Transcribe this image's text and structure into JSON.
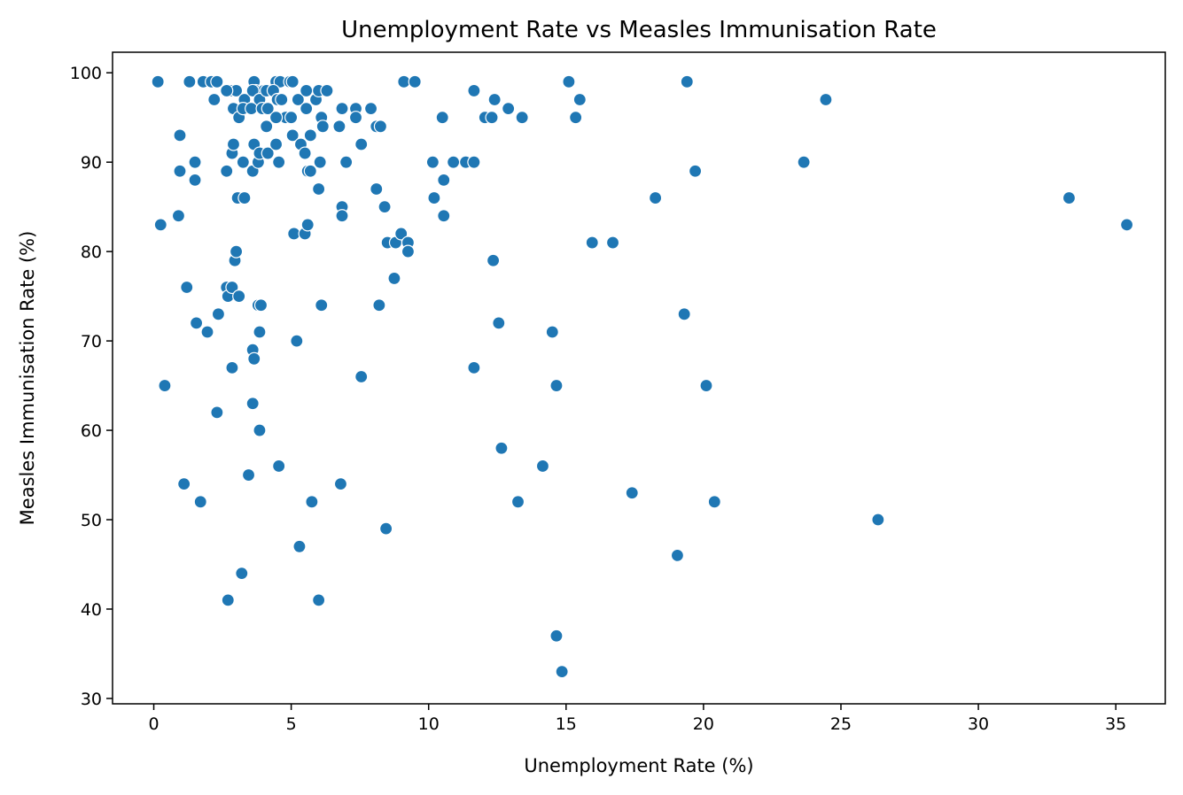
{
  "chart_data": {
    "type": "scatter",
    "title": "Unemployment Rate vs Measles Immunisation Rate",
    "xlabel": "Unemployment Rate (%)",
    "ylabel": "Measles Immunisation Rate (%)",
    "xlim": [
      -1.5,
      36.8
    ],
    "ylim": [
      29.4,
      102.3
    ],
    "xticks": [
      0,
      5,
      10,
      15,
      20,
      25,
      30,
      35
    ],
    "yticks": [
      30,
      40,
      50,
      60,
      70,
      80,
      90,
      100
    ],
    "grid": false,
    "color": "#1f77b4",
    "points": [
      [
        0.15,
        99
      ],
      [
        1.3,
        99
      ],
      [
        1.8,
        99
      ],
      [
        2.1,
        99
      ],
      [
        2.3,
        99
      ],
      [
        2.8,
        98
      ],
      [
        3.0,
        98
      ],
      [
        3.65,
        99
      ],
      [
        3.7,
        98
      ],
      [
        4.0,
        98
      ],
      [
        4.45,
        99
      ],
      [
        4.6,
        99
      ],
      [
        4.95,
        99
      ],
      [
        5.05,
        99
      ],
      [
        2.2,
        97
      ],
      [
        2.65,
        98
      ],
      [
        3.3,
        97
      ],
      [
        3.6,
        98
      ],
      [
        3.85,
        97
      ],
      [
        4.1,
        98
      ],
      [
        4.35,
        98
      ],
      [
        4.5,
        97
      ],
      [
        4.65,
        97
      ],
      [
        4.8,
        95
      ],
      [
        5.0,
        95
      ],
      [
        5.25,
        97
      ],
      [
        5.55,
        98
      ],
      [
        5.9,
        97
      ],
      [
        6.0,
        98
      ],
      [
        6.3,
        98
      ],
      [
        2.9,
        96
      ],
      [
        3.1,
        95
      ],
      [
        3.25,
        96
      ],
      [
        3.55,
        96
      ],
      [
        3.95,
        96
      ],
      [
        4.15,
        96
      ],
      [
        4.45,
        95
      ],
      [
        5.55,
        96
      ],
      [
        6.1,
        95
      ],
      [
        6.15,
        94
      ],
      [
        6.75,
        94
      ],
      [
        6.85,
        96
      ],
      [
        7.35,
        96
      ],
      [
        7.35,
        95
      ],
      [
        7.9,
        96
      ],
      [
        8.1,
        94
      ],
      [
        8.25,
        94
      ],
      [
        9.1,
        99
      ],
      [
        9.5,
        99
      ],
      [
        10.5,
        95
      ],
      [
        11.65,
        98
      ],
      [
        12.05,
        95
      ],
      [
        12.3,
        95
      ],
      [
        12.4,
        97
      ],
      [
        12.9,
        96
      ],
      [
        13.4,
        95
      ],
      [
        15.1,
        99
      ],
      [
        15.35,
        95
      ],
      [
        15.5,
        97
      ],
      [
        19.4,
        99
      ],
      [
        24.45,
        97
      ],
      [
        0.95,
        93
      ],
      [
        1.5,
        90
      ],
      [
        0.95,
        89
      ],
      [
        1.5,
        88
      ],
      [
        2.65,
        89
      ],
      [
        2.85,
        91
      ],
      [
        2.9,
        92
      ],
      [
        3.05,
        86
      ],
      [
        3.25,
        90
      ],
      [
        3.3,
        86
      ],
      [
        3.6,
        89
      ],
      [
        3.65,
        92
      ],
      [
        3.8,
        90
      ],
      [
        3.85,
        91
      ],
      [
        4.1,
        94
      ],
      [
        4.15,
        91
      ],
      [
        4.45,
        92
      ],
      [
        4.55,
        90
      ],
      [
        5.05,
        93
      ],
      [
        5.35,
        92
      ],
      [
        5.5,
        91
      ],
      [
        5.6,
        89
      ],
      [
        5.7,
        89
      ],
      [
        5.7,
        93
      ],
      [
        6.0,
        87
      ],
      [
        6.05,
        90
      ],
      [
        6.85,
        85
      ],
      [
        6.85,
        84
      ],
      [
        7.0,
        90
      ],
      [
        7.55,
        92
      ],
      [
        8.1,
        87
      ],
      [
        8.4,
        85
      ],
      [
        10.15,
        90
      ],
      [
        10.2,
        86
      ],
      [
        10.55,
        88
      ],
      [
        10.55,
        84
      ],
      [
        10.9,
        90
      ],
      [
        11.35,
        90
      ],
      [
        11.65,
        90
      ],
      [
        15.95,
        81
      ],
      [
        16.7,
        81
      ],
      [
        18.25,
        86
      ],
      [
        19.7,
        89
      ],
      [
        23.65,
        90
      ],
      [
        33.3,
        86
      ],
      [
        35.4,
        83
      ],
      [
        0.25,
        83
      ],
      [
        0.9,
        84
      ],
      [
        1.2,
        76
      ],
      [
        1.55,
        72
      ],
      [
        1.95,
        71
      ],
      [
        2.35,
        73
      ],
      [
        2.65,
        76
      ],
      [
        2.7,
        75
      ],
      [
        2.85,
        76
      ],
      [
        2.95,
        79
      ],
      [
        3.0,
        80
      ],
      [
        3.1,
        75
      ],
      [
        3.8,
        74
      ],
      [
        3.85,
        71
      ],
      [
        3.9,
        74
      ],
      [
        5.1,
        82
      ],
      [
        5.5,
        82
      ],
      [
        5.6,
        83
      ],
      [
        6.1,
        74
      ],
      [
        8.5,
        81
      ],
      [
        8.8,
        81
      ],
      [
        8.75,
        77
      ],
      [
        9.0,
        82
      ],
      [
        9.25,
        81
      ],
      [
        9.25,
        80
      ],
      [
        8.2,
        74
      ],
      [
        12.35,
        79
      ],
      [
        0.4,
        65
      ],
      [
        2.85,
        67
      ],
      [
        3.6,
        69
      ],
      [
        3.65,
        68
      ],
      [
        5.2,
        70
      ],
      [
        7.55,
        66
      ],
      [
        12.55,
        72
      ],
      [
        11.65,
        67
      ],
      [
        14.5,
        71
      ],
      [
        14.65,
        65
      ],
      [
        19.3,
        73
      ],
      [
        20.1,
        65
      ],
      [
        2.3,
        62
      ],
      [
        3.6,
        63
      ],
      [
        3.85,
        60
      ],
      [
        1.1,
        54
      ],
      [
        1.7,
        52
      ],
      [
        3.45,
        55
      ],
      [
        4.55,
        56
      ],
      [
        5.75,
        52
      ],
      [
        6.8,
        54
      ],
      [
        5.3,
        47
      ],
      [
        8.45,
        49
      ],
      [
        12.65,
        58
      ],
      [
        13.25,
        52
      ],
      [
        14.15,
        56
      ],
      [
        17.4,
        53
      ],
      [
        20.4,
        52
      ],
      [
        19.05,
        46
      ],
      [
        26.35,
        50
      ],
      [
        2.7,
        41
      ],
      [
        3.2,
        44
      ],
      [
        6.0,
        41
      ],
      [
        14.65,
        37
      ],
      [
        14.85,
        33
      ]
    ]
  }
}
